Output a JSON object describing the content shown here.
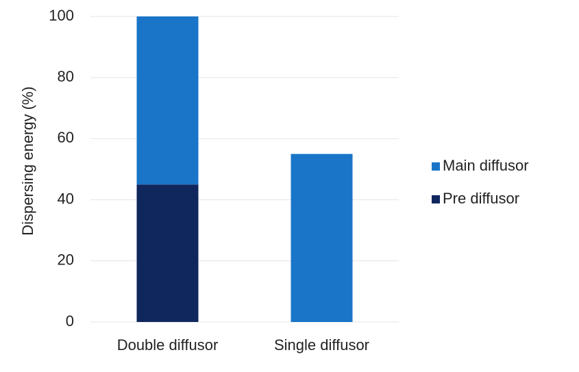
{
  "chart_data": {
    "type": "stacked_bar",
    "y_label": "Dispersing energy  (%)",
    "categories": [
      "Double diffusor",
      "Single diffusor"
    ],
    "series": [
      {
        "name": "Pre diffusor",
        "color": "#10275e",
        "values": [
          45,
          null
        ]
      },
      {
        "name": "Main diffusor",
        "color": "#1a75c9",
        "values": [
          55,
          55
        ]
      }
    ],
    "ylim": [
      0,
      100
    ],
    "yticks": [
      0,
      20,
      40,
      60,
      80,
      100
    ],
    "grid": true,
    "legend": "right"
  }
}
